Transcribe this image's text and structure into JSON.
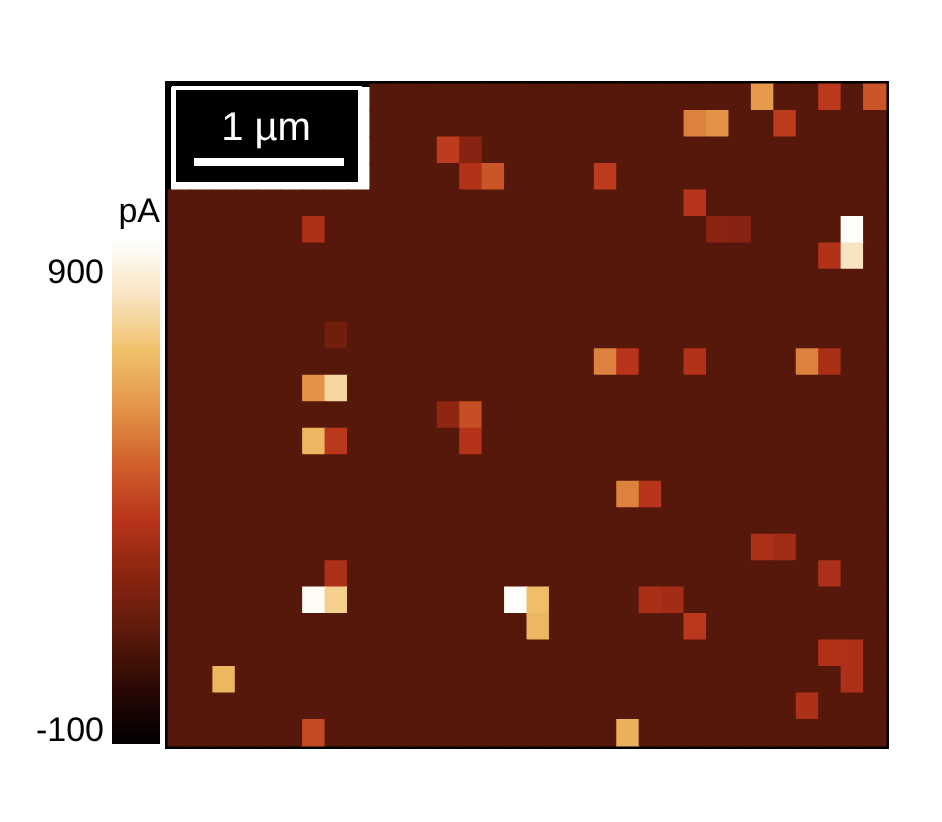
{
  "chart_data": {
    "type": "heatmap",
    "categories": [
      null,
      null,
      null,
      null,
      null,
      null,
      null,
      null,
      null,
      null,
      null,
      null,
      null,
      null,
      null,
      null,
      null,
      null,
      null,
      null,
      null,
      null,
      null,
      null,
      null,
      null,
      null,
      null,
      null,
      null,
      null,
      null
    ],
    "y_categories": [
      null,
      null,
      null,
      null,
      null,
      null,
      null,
      null,
      null,
      null,
      null,
      null,
      null,
      null,
      null,
      null,
      null,
      null,
      null,
      null,
      null,
      null,
      null,
      null,
      null
    ],
    "cells": [
      [
        null,
        null,
        null,
        null,
        null,
        null,
        null,
        null,
        null,
        100,
        100,
        100,
        100,
        100,
        100,
        100,
        100,
        100,
        100,
        100,
        100,
        100,
        100,
        100,
        100,
        100,
        620,
        100,
        100,
        370,
        100,
        450
      ],
      [
        null,
        null,
        null,
        null,
        null,
        null,
        null,
        null,
        null,
        100,
        100,
        100,
        100,
        100,
        100,
        100,
        100,
        100,
        100,
        100,
        100,
        100,
        100,
        560,
        600,
        100,
        100,
        380,
        100,
        100,
        100,
        100
      ],
      [
        null,
        null,
        null,
        null,
        null,
        null,
        null,
        null,
        null,
        100,
        100,
        100,
        380,
        230,
        100,
        100,
        100,
        100,
        100,
        100,
        100,
        100,
        100,
        100,
        100,
        100,
        100,
        100,
        100,
        100,
        100,
        100
      ],
      [
        null,
        null,
        null,
        null,
        null,
        null,
        null,
        null,
        null,
        100,
        100,
        100,
        100,
        340,
        450,
        100,
        100,
        100,
        100,
        380,
        100,
        100,
        100,
        100,
        100,
        100,
        100,
        100,
        100,
        100,
        100,
        100
      ],
      [
        100,
        100,
        100,
        100,
        100,
        100,
        100,
        100,
        100,
        100,
        100,
        100,
        100,
        100,
        100,
        100,
        100,
        100,
        100,
        100,
        100,
        100,
        100,
        360,
        100,
        100,
        100,
        100,
        100,
        100,
        100,
        100
      ],
      [
        100,
        100,
        100,
        100,
        100,
        100,
        330,
        100,
        100,
        100,
        100,
        100,
        100,
        100,
        100,
        100,
        100,
        100,
        100,
        100,
        100,
        100,
        100,
        100,
        240,
        230,
        100,
        100,
        100,
        100,
        960,
        100
      ],
      [
        100,
        100,
        100,
        100,
        100,
        100,
        100,
        100,
        100,
        100,
        100,
        100,
        100,
        100,
        100,
        100,
        100,
        100,
        100,
        100,
        100,
        100,
        100,
        100,
        100,
        100,
        100,
        100,
        100,
        340,
        850,
        100
      ],
      [
        100,
        100,
        100,
        100,
        100,
        100,
        100,
        100,
        100,
        100,
        100,
        100,
        100,
        100,
        100,
        100,
        100,
        100,
        100,
        100,
        100,
        100,
        100,
        100,
        100,
        100,
        100,
        100,
        100,
        100,
        100,
        100
      ],
      [
        100,
        100,
        100,
        100,
        100,
        100,
        100,
        100,
        100,
        100,
        100,
        100,
        100,
        100,
        100,
        100,
        100,
        100,
        100,
        100,
        100,
        100,
        100,
        100,
        100,
        100,
        100,
        100,
        100,
        100,
        100,
        100
      ],
      [
        100,
        100,
        100,
        100,
        100,
        100,
        100,
        170,
        100,
        100,
        100,
        100,
        100,
        100,
        100,
        100,
        100,
        100,
        100,
        100,
        100,
        100,
        100,
        100,
        100,
        100,
        100,
        100,
        100,
        100,
        100,
        100
      ],
      [
        100,
        100,
        100,
        100,
        100,
        100,
        100,
        100,
        100,
        100,
        100,
        100,
        100,
        100,
        100,
        100,
        100,
        100,
        100,
        560,
        360,
        100,
        100,
        340,
        100,
        100,
        100,
        100,
        560,
        320,
        100,
        100
      ],
      [
        100,
        100,
        100,
        100,
        100,
        100,
        600,
        800,
        100,
        100,
        100,
        100,
        100,
        100,
        100,
        100,
        100,
        100,
        100,
        100,
        100,
        100,
        100,
        100,
        100,
        100,
        100,
        100,
        100,
        100,
        100,
        100
      ],
      [
        100,
        100,
        100,
        100,
        100,
        100,
        100,
        100,
        100,
        100,
        100,
        100,
        250,
        430,
        100,
        100,
        100,
        100,
        100,
        100,
        100,
        100,
        100,
        100,
        100,
        100,
        100,
        100,
        100,
        100,
        100,
        100
      ],
      [
        100,
        100,
        100,
        100,
        100,
        100,
        700,
        370,
        100,
        100,
        100,
        100,
        100,
        350,
        100,
        100,
        100,
        100,
        100,
        100,
        100,
        100,
        100,
        100,
        100,
        100,
        100,
        100,
        100,
        100,
        100,
        100
      ],
      [
        100,
        100,
        100,
        100,
        100,
        100,
        100,
        100,
        100,
        100,
        100,
        100,
        100,
        100,
        100,
        100,
        100,
        100,
        100,
        100,
        100,
        100,
        100,
        100,
        100,
        100,
        100,
        100,
        100,
        100,
        100,
        100
      ],
      [
        100,
        100,
        100,
        100,
        100,
        100,
        100,
        100,
        100,
        100,
        100,
        100,
        100,
        100,
        100,
        100,
        100,
        100,
        100,
        100,
        560,
        360,
        100,
        100,
        100,
        100,
        100,
        100,
        100,
        100,
        100,
        100
      ],
      [
        100,
        100,
        100,
        100,
        100,
        100,
        100,
        100,
        100,
        100,
        100,
        100,
        100,
        100,
        100,
        100,
        100,
        100,
        100,
        100,
        100,
        100,
        100,
        100,
        100,
        100,
        100,
        100,
        100,
        100,
        100,
        100
      ],
      [
        100,
        100,
        100,
        100,
        100,
        100,
        100,
        100,
        100,
        100,
        100,
        100,
        100,
        100,
        100,
        100,
        100,
        100,
        100,
        100,
        100,
        100,
        100,
        100,
        100,
        100,
        330,
        300,
        100,
        100,
        100,
        100
      ],
      [
        100,
        100,
        100,
        100,
        100,
        100,
        100,
        330,
        100,
        100,
        100,
        100,
        100,
        100,
        100,
        100,
        100,
        100,
        100,
        100,
        100,
        100,
        100,
        100,
        100,
        100,
        100,
        100,
        100,
        330,
        100,
        100
      ],
      [
        100,
        100,
        100,
        100,
        100,
        100,
        950,
        780,
        100,
        100,
        100,
        100,
        100,
        100,
        100,
        960,
        720,
        100,
        100,
        100,
        100,
        320,
        300,
        100,
        100,
        100,
        100,
        100,
        100,
        100,
        100,
        100
      ],
      [
        100,
        100,
        100,
        100,
        100,
        100,
        100,
        100,
        100,
        100,
        100,
        100,
        100,
        100,
        100,
        100,
        700,
        100,
        100,
        100,
        100,
        100,
        100,
        370,
        100,
        100,
        100,
        100,
        100,
        100,
        100,
        100
      ],
      [
        100,
        100,
        100,
        100,
        100,
        100,
        100,
        100,
        100,
        100,
        100,
        100,
        100,
        100,
        100,
        100,
        100,
        100,
        100,
        100,
        100,
        100,
        100,
        100,
        100,
        100,
        100,
        100,
        100,
        340,
        330,
        100
      ],
      [
        100,
        100,
        700,
        100,
        100,
        100,
        100,
        100,
        100,
        100,
        100,
        100,
        100,
        100,
        100,
        100,
        100,
        100,
        100,
        100,
        100,
        100,
        100,
        100,
        100,
        100,
        100,
        100,
        100,
        100,
        330,
        100
      ],
      [
        100,
        100,
        100,
        100,
        100,
        100,
        100,
        100,
        100,
        100,
        100,
        100,
        100,
        100,
        100,
        100,
        100,
        100,
        100,
        100,
        100,
        100,
        100,
        100,
        100,
        100,
        100,
        100,
        330,
        100,
        100,
        100
      ],
      [
        100,
        100,
        100,
        100,
        100,
        100,
        420,
        100,
        100,
        100,
        100,
        100,
        100,
        100,
        100,
        100,
        100,
        100,
        100,
        100,
        680,
        100,
        100,
        100,
        100,
        100,
        100,
        100,
        100,
        100,
        100,
        100
      ]
    ],
    "clim": [
      -130,
      970
    ],
    "cticks": [
      -100,
      900
    ],
    "clabel": "pA",
    "annotations": [
      "1 µm"
    ]
  }
}
